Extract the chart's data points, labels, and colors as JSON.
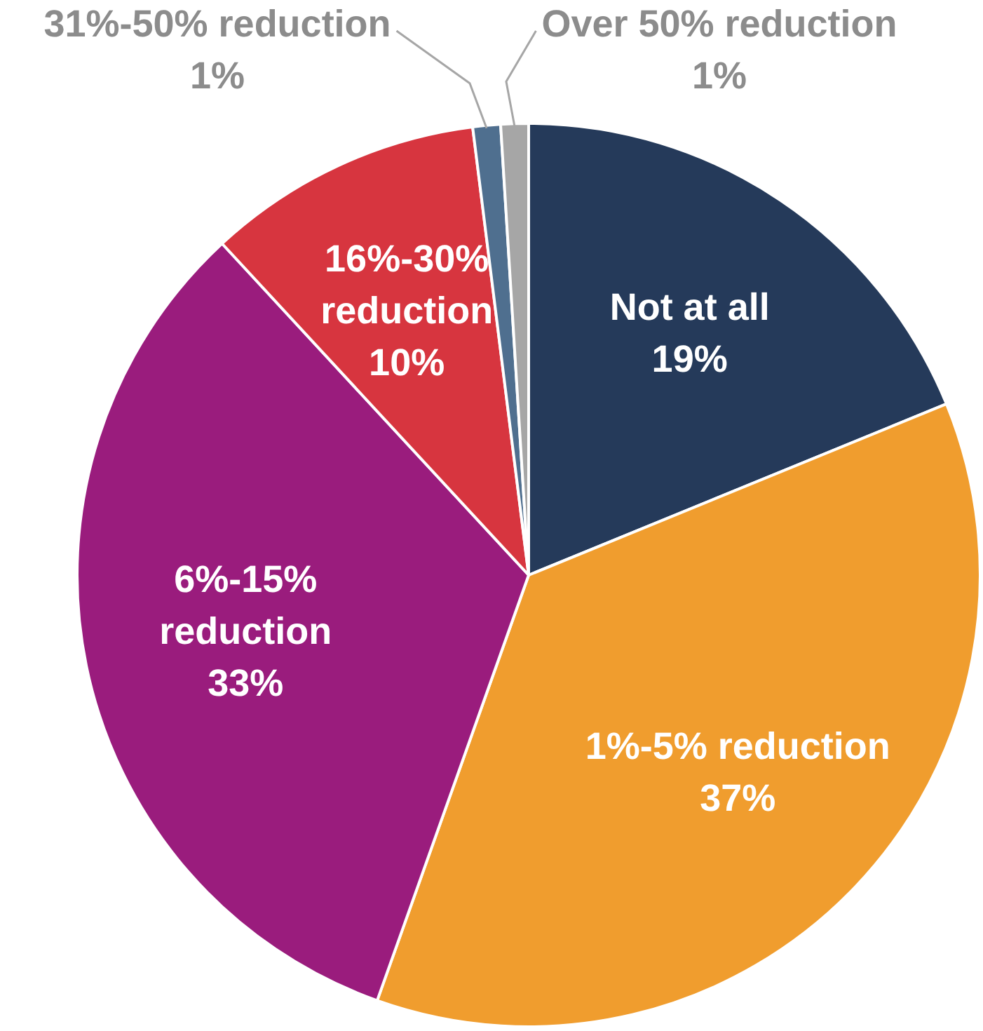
{
  "chart_data": {
    "type": "pie",
    "categories": [
      "Not at all",
      "1%-5% reduction",
      "6%-15% reduction",
      "16%-30% reduction",
      "31%-50% reduction",
      "Over 50% reduction"
    ],
    "values": [
      19,
      37,
      33,
      10,
      1,
      1
    ],
    "colors": [
      "#253a5a",
      "#f09d2e",
      "#9a1c7d",
      "#d7353f",
      "#4f6f8f",
      "#a6a6a6"
    ],
    "value_labels": [
      "19%",
      "37%",
      "33%",
      "10%",
      "1%",
      "1%"
    ]
  }
}
